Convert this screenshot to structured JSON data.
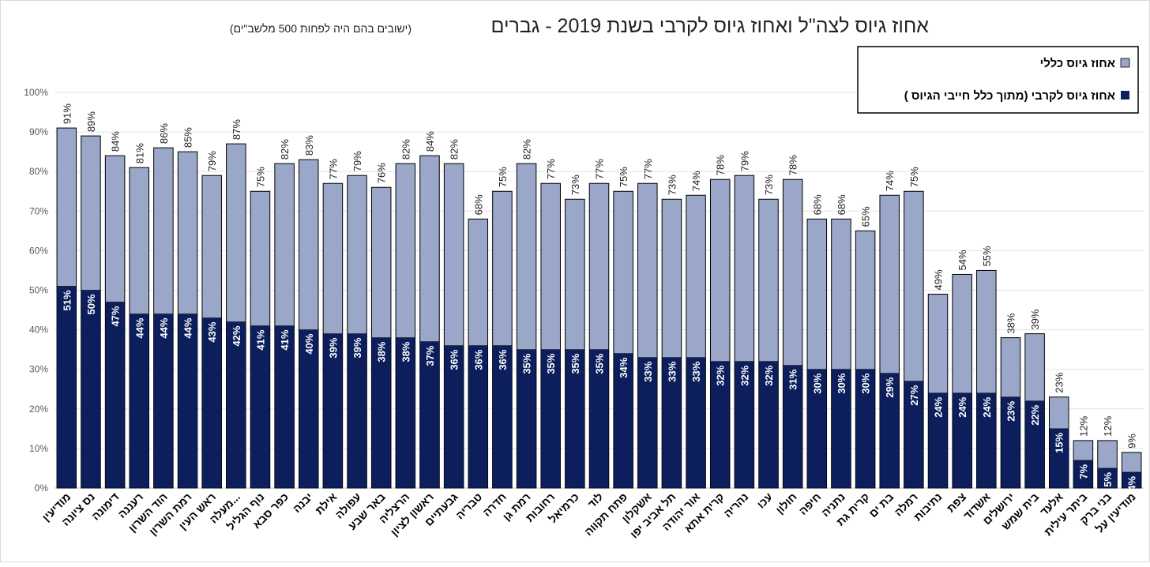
{
  "chart_data": {
    "type": "bar",
    "stacked_overlay": true,
    "title": "אחוז גיוס לצה\"ל ואחוז גיוס לקרבי בשנת 2019 - גברים",
    "subtitle": "(ישובים בהם היה לפחות 500 מלשב\"ים)",
    "xlabel": "",
    "ylabel": "",
    "ylim": [
      0,
      100
    ],
    "yticks": [
      "0%",
      "10%",
      "20%",
      "30%",
      "40%",
      "50%",
      "60%",
      "70%",
      "80%",
      "90%",
      "100%"
    ],
    "grid": true,
    "legend_position": "top-right",
    "categories": [
      "מודיעין",
      "נס ציונה",
      "דימונה",
      "רעננה",
      "הוד השרון",
      "רמת השרון",
      "ראש העין",
      "מעלה...",
      "נוף הגליל",
      "כפר סבא",
      "יבנה",
      "אילת",
      "עפולה",
      "באר שבע",
      "הרצליה",
      "ראשון לציון",
      "גבעתיים",
      "טבריה",
      "חדרה",
      "רמת גן",
      "רחובות",
      "כרמיאל",
      "לוד",
      "פתח תקווה",
      "אשקלון",
      "תל אביב יפו",
      "אור יהודה",
      "קרית אתא",
      "נהריה",
      "עכו",
      "חולון",
      "חיפה",
      "נתניה",
      "קרית גת",
      "בת ים",
      "רמלה",
      "נתיבות",
      "צפת",
      "אשדוד",
      "ירושלים",
      "בית שמש",
      "אלעד",
      "ביתר עילית",
      "בני ברק",
      "מודיעין על"
    ],
    "series": [
      {
        "name": "אחוז גיוס כללי",
        "color": "#9aa7c8",
        "values": [
          91,
          89,
          84,
          81,
          86,
          85,
          79,
          87,
          75,
          82,
          83,
          77,
          79,
          76,
          82,
          84,
          82,
          68,
          75,
          82,
          77,
          73,
          77,
          75,
          77,
          73,
          74,
          78,
          79,
          73,
          78,
          68,
          68,
          65,
          74,
          75,
          49,
          54,
          55,
          38,
          39,
          23,
          12,
          12,
          9
        ]
      },
      {
        "name": "אחוז גיוס לקרבי (מתוך כלל חייבי הגיוס )",
        "color": "#0c1f5c",
        "values": [
          51,
          50,
          47,
          44,
          44,
          44,
          43,
          42,
          41,
          41,
          40,
          39,
          39,
          38,
          38,
          37,
          36,
          36,
          36,
          35,
          35,
          35,
          35,
          34,
          33,
          33,
          33,
          32,
          32,
          32,
          31,
          30,
          30,
          30,
          29,
          27,
          24,
          24,
          24,
          23,
          22,
          15,
          7,
          5,
          4
        ]
      }
    ]
  }
}
